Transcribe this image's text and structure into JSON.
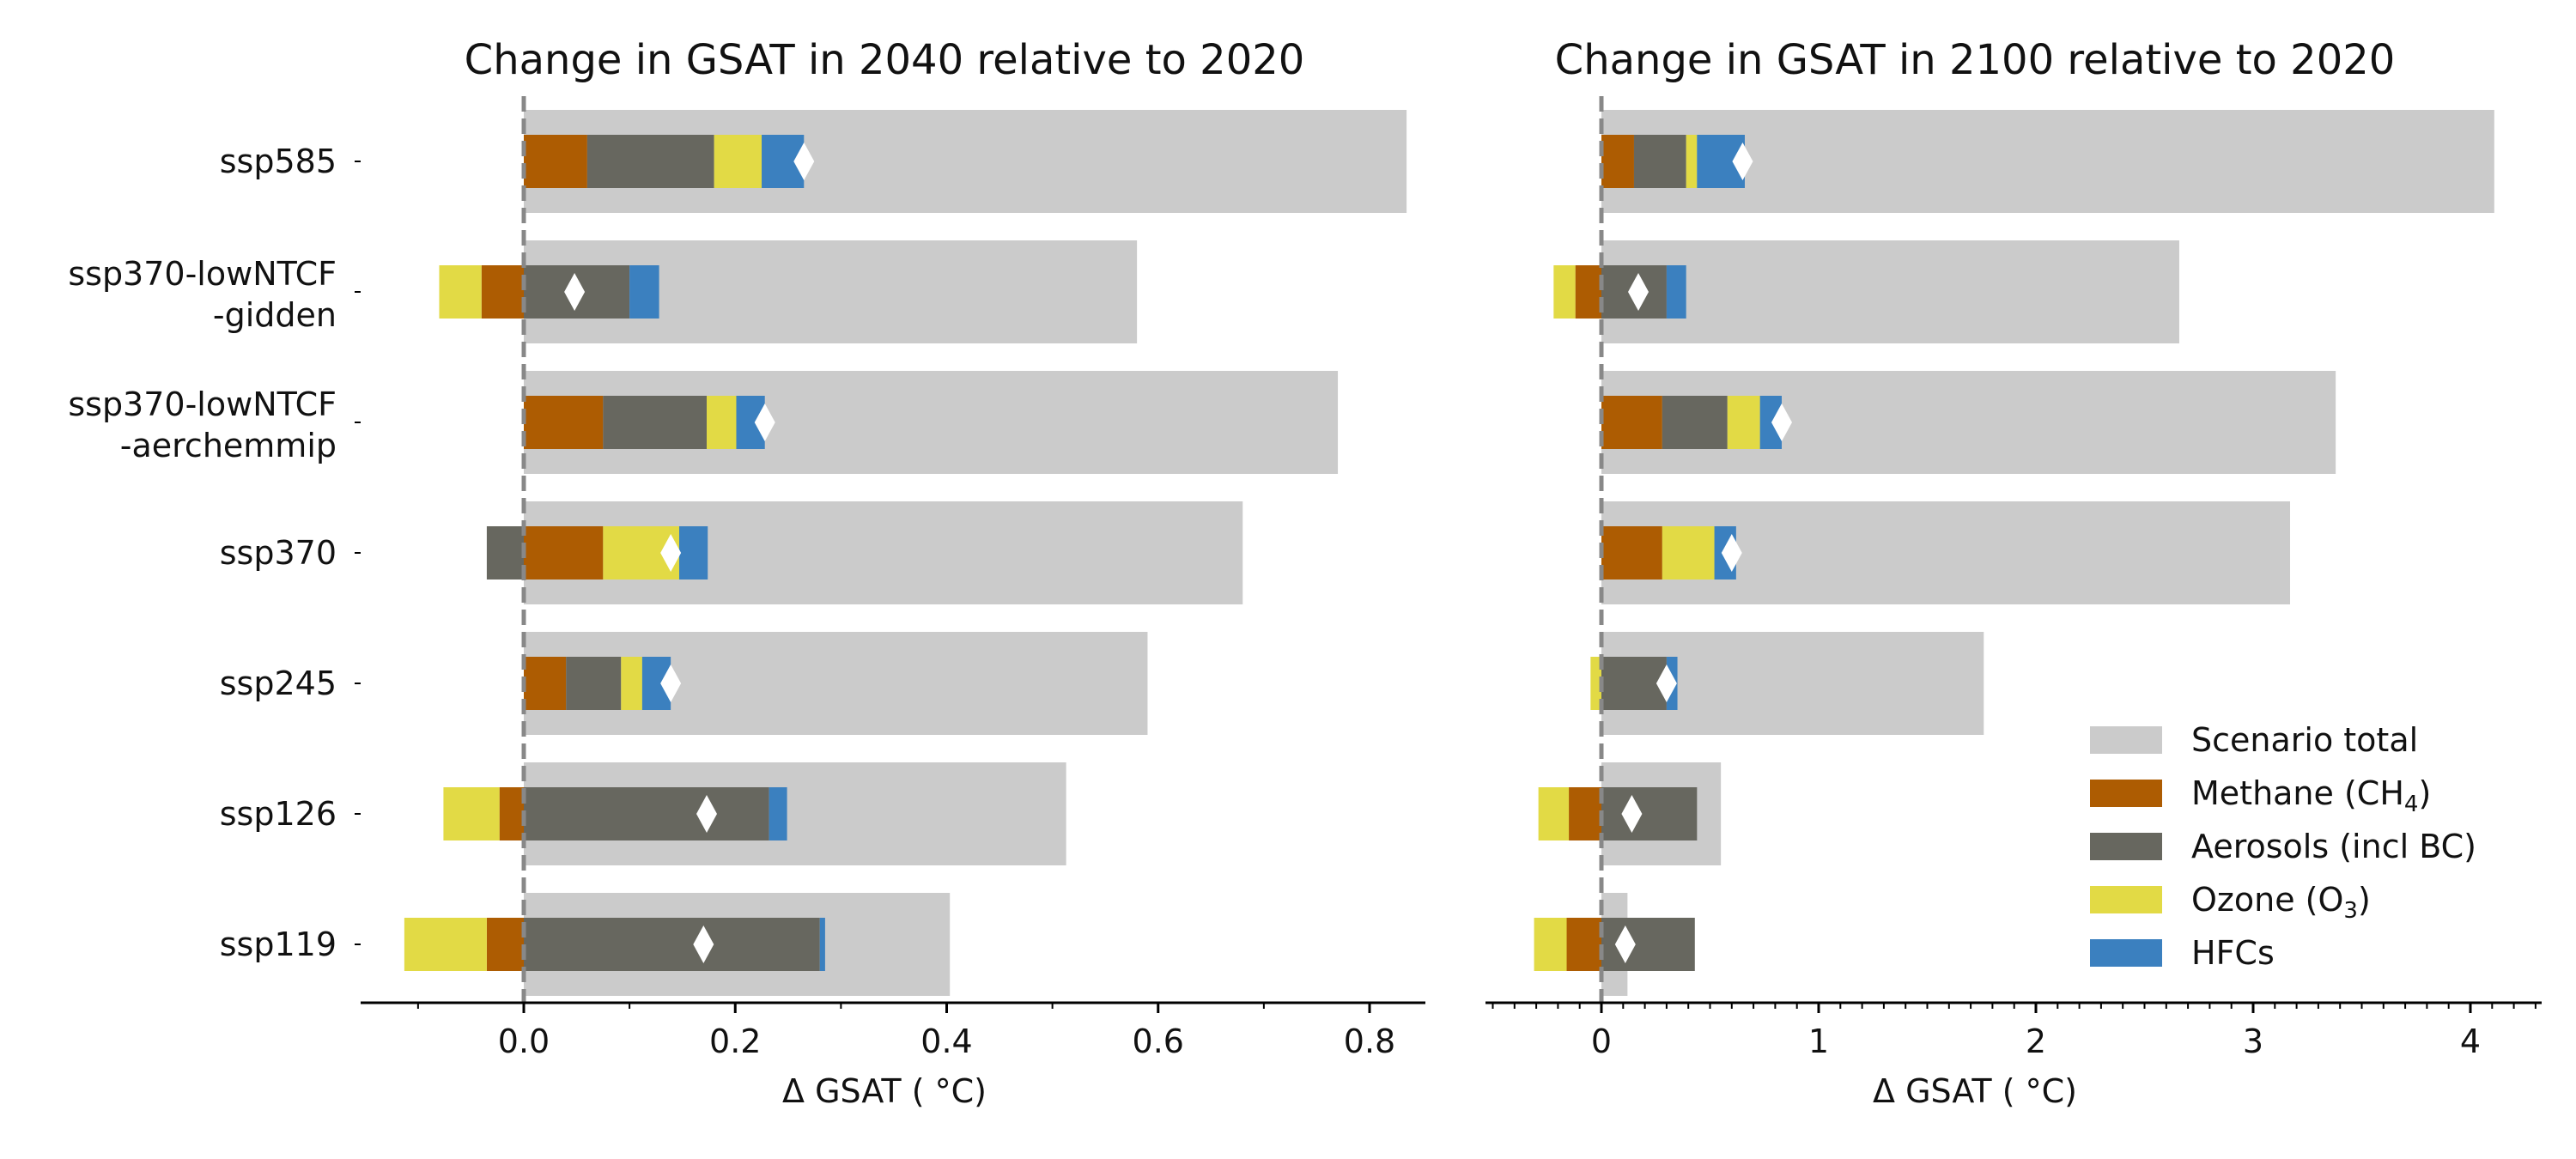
{
  "colors": {
    "total": "#cbcbcb",
    "methane": "#ad5c02",
    "aerosols": "#67675f",
    "ozone": "#e2da45",
    "hfcs": "#3b80bf",
    "marker": "#ffffff",
    "zero_line": "#888888"
  },
  "legend": {
    "items": [
      {
        "key": "total",
        "label": "Scenario total"
      },
      {
        "key": "methane",
        "label": "Methane (CH",
        "sub": "4",
        "tail": ")"
      },
      {
        "key": "aerosols",
        "label": "Aerosols (incl BC)"
      },
      {
        "key": "ozone",
        "label": "Ozone (O",
        "sub": "3",
        "tail": ")"
      },
      {
        "key": "hfcs",
        "label": "HFCs"
      }
    ]
  },
  "chart_data": [
    {
      "type": "bar",
      "orientation": "horizontal",
      "stacked": "diverging",
      "title": "Change in GSAT in 2040 relative to 2020",
      "xlabel": "Δ GSAT ( °C)",
      "xlim": [
        -0.16,
        0.88
      ],
      "xticks": [
        0.0,
        0.2,
        0.4,
        0.6,
        0.8
      ],
      "xtick_labels": [
        "0.0",
        "0.2",
        "0.4",
        "0.6",
        "0.8"
      ],
      "minor_ticks": [
        -0.1,
        0.1,
        0.3,
        0.5,
        0.7
      ],
      "categories": [
        [
          "ssp585"
        ],
        [
          "ssp370-lowNTCF",
          "-gidden"
        ],
        [
          "ssp370-lowNTCF",
          "-aerchemmip"
        ],
        [
          "ssp370"
        ],
        [
          "ssp245"
        ],
        [
          "ssp126"
        ],
        [
          "ssp119"
        ]
      ],
      "scenario_total": [
        0.835,
        0.58,
        0.77,
        0.68,
        0.59,
        0.513,
        0.403
      ],
      "series": [
        {
          "name": "Methane (CH4)",
          "key": "methane",
          "values": [
            0.06,
            -0.04,
            0.075,
            0.075,
            0.04,
            -0.023,
            -0.035
          ]
        },
        {
          "name": "Aerosols (incl BC)",
          "key": "aerosols",
          "values": [
            0.12,
            0.1,
            0.098,
            -0.035,
            0.052,
            0.232,
            0.28
          ]
        },
        {
          "name": "Ozone (O3)",
          "key": "ozone",
          "values": [
            0.045,
            -0.04,
            0.028,
            0.072,
            0.02,
            -0.053,
            -0.078
          ]
        },
        {
          "name": "HFCs",
          "key": "hfcs",
          "values": [
            0.04,
            0.028,
            0.027,
            0.027,
            0.027,
            0.017,
            0.005
          ]
        }
      ],
      "net": [
        0.265,
        0.048,
        0.228,
        0.139,
        0.139,
        0.173,
        0.17
      ]
    },
    {
      "type": "bar",
      "orientation": "horizontal",
      "stacked": "diverging",
      "title": "Change in GSAT in 2100 relative to 2020",
      "xlabel": "Δ GSAT ( °C)",
      "xlim": [
        -0.52,
        4.33
      ],
      "xticks": [
        0,
        1,
        2,
        3,
        4
      ],
      "xtick_labels": [
        "0",
        "1",
        "2",
        "3",
        "4"
      ],
      "minor_ticks": [
        -0.5,
        -0.4,
        -0.3,
        -0.2,
        -0.1,
        0.1,
        0.2,
        0.3,
        0.4,
        0.5,
        0.6,
        0.7,
        0.8,
        0.9,
        1.1,
        1.2,
        1.3,
        1.4,
        1.5,
        1.6,
        1.7,
        1.8,
        1.9,
        2.1,
        2.2,
        2.3,
        2.4,
        2.5,
        2.6,
        2.7,
        2.8,
        2.9,
        3.1,
        3.2,
        3.3,
        3.4,
        3.5,
        3.6,
        3.7,
        3.8,
        3.9,
        4.1,
        4.2,
        4.3
      ],
      "categories": [
        [
          "ssp585"
        ],
        [
          "ssp370-lowNTCF",
          "-gidden"
        ],
        [
          "ssp370-lowNTCF",
          "-aerchemmip"
        ],
        [
          "ssp370"
        ],
        [
          "ssp245"
        ],
        [
          "ssp126"
        ],
        [
          "ssp119"
        ]
      ],
      "scenario_total": [
        4.11,
        2.66,
        3.38,
        3.17,
        1.76,
        0.55,
        0.12
      ],
      "series": [
        {
          "name": "Methane (CH4)",
          "key": "methane",
          "values": [
            0.15,
            -0.12,
            0.28,
            0.28,
            0.0,
            -0.15,
            -0.16
          ]
        },
        {
          "name": "Aerosols (incl BC)",
          "key": "aerosols",
          "values": [
            0.24,
            0.3,
            0.3,
            0.0,
            0.3,
            0.44,
            0.43
          ]
        },
        {
          "name": "Ozone (O3)",
          "key": "ozone",
          "values": [
            0.05,
            -0.1,
            0.15,
            0.24,
            -0.05,
            -0.14,
            -0.15
          ]
        },
        {
          "name": "HFCs",
          "key": "hfcs",
          "values": [
            0.22,
            0.09,
            0.1,
            0.1,
            0.05,
            0.0,
            0.0
          ]
        }
      ],
      "net": [
        0.65,
        0.17,
        0.83,
        0.6,
        0.3,
        0.14,
        0.11
      ]
    }
  ]
}
